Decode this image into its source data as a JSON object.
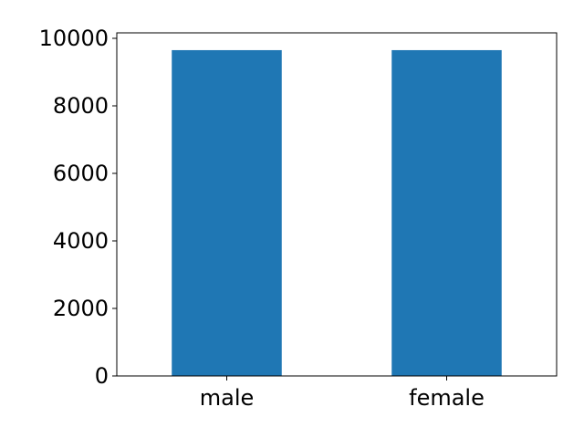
{
  "chart_data": {
    "type": "bar",
    "categories": [
      "male",
      "female"
    ],
    "values": [
      9650,
      9650
    ],
    "ylim": [
      0,
      10000
    ],
    "yticks": [
      0,
      2000,
      4000,
      6000,
      8000,
      10000
    ],
    "title": "",
    "xlabel": "",
    "ylabel": "",
    "bar_color": "#1f77b4",
    "grid": false,
    "legend": false
  }
}
